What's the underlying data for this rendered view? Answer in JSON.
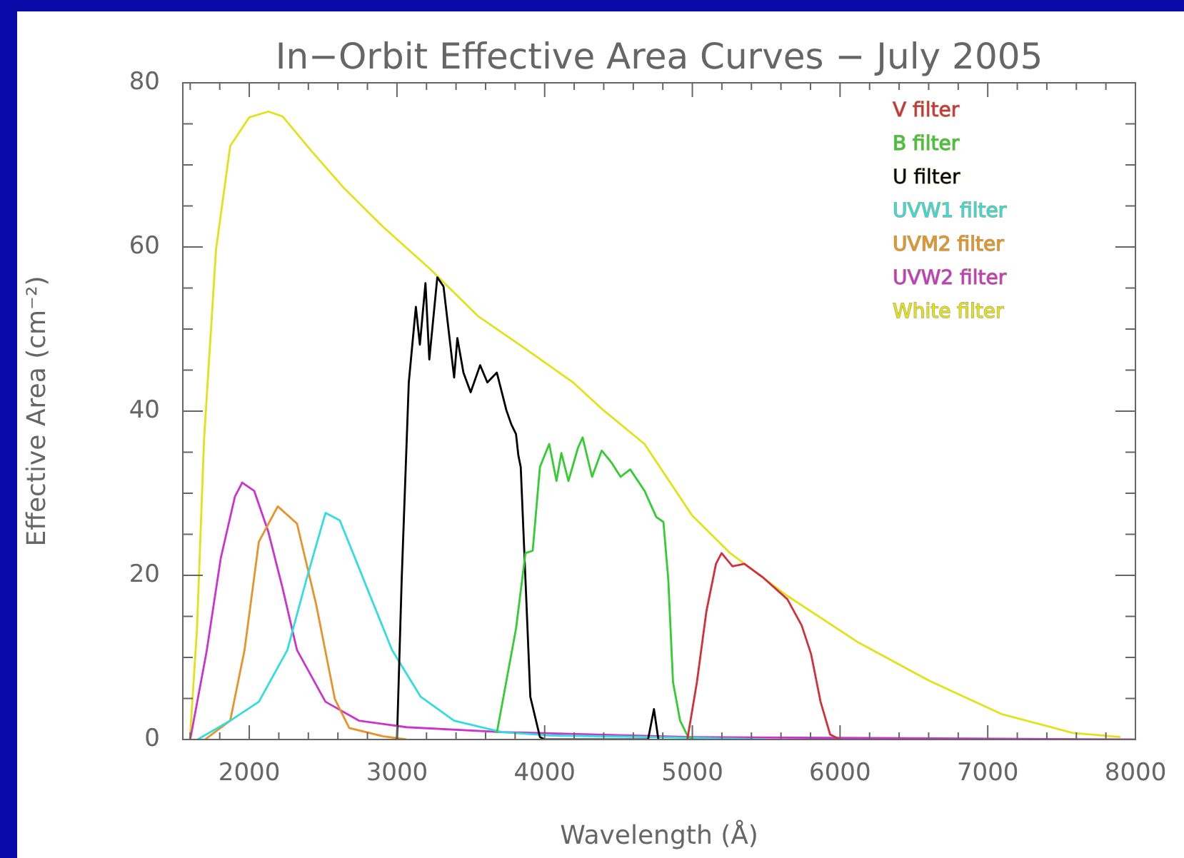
{
  "chart_data": {
    "type": "line",
    "title": "In−Orbit Effective Area Curves − July 2005",
    "xlabel": "Wavelength (Å)",
    "ylabel": "Effective Area (cm⁻²)",
    "xlim": [
      1550,
      8000
    ],
    "ylim": [
      0,
      80
    ],
    "xticks": [
      {
        "value": 1600,
        "label": null
      },
      {
        "value": 1800,
        "label": null
      },
      2000,
      {
        "value": 2200,
        "label": null
      },
      {
        "value": 2400,
        "label": null
      },
      {
        "value": 2600,
        "label": null
      },
      {
        "value": 2800,
        "label": null
      },
      3000,
      {
        "value": 3200,
        "label": null
      },
      {
        "value": 3400,
        "label": null
      },
      {
        "value": 3600,
        "label": null
      },
      {
        "value": 3800,
        "label": null
      },
      4000,
      {
        "value": 4200,
        "label": null
      },
      {
        "value": 4400,
        "label": null
      },
      {
        "value": 4600,
        "label": null
      },
      {
        "value": 4800,
        "label": null
      },
      5000,
      {
        "value": 5200,
        "label": null
      },
      {
        "value": 5400,
        "label": null
      },
      {
        "value": 5600,
        "label": null
      },
      {
        "value": 5800,
        "label": null
      },
      6000,
      {
        "value": 6200,
        "label": null
      },
      {
        "value": 6400,
        "label": null
      },
      {
        "value": 6600,
        "label": null
      },
      {
        "value": 6800,
        "label": null
      },
      7000,
      {
        "value": 7200,
        "label": null
      },
      {
        "value": 7400,
        "label": null
      },
      {
        "value": 7600,
        "label": null
      },
      {
        "value": 7800,
        "label": null
      },
      8000
    ],
    "yticks": [
      0,
      {
        "value": 5,
        "label": null
      },
      {
        "value": 10,
        "label": null
      },
      {
        "value": 15,
        "label": null
      },
      20,
      {
        "value": 25,
        "label": null
      },
      {
        "value": 30,
        "label": null
      },
      {
        "value": 35,
        "label": null
      },
      40,
      {
        "value": 45,
        "label": null
      },
      {
        "value": 50,
        "label": null
      },
      {
        "value": 55,
        "label": null
      },
      60,
      {
        "value": 65,
        "label": null
      },
      {
        "value": 70,
        "label": null
      },
      {
        "value": 75,
        "label": null
      },
      80
    ],
    "grid": false,
    "legend": "top right",
    "marker": "none",
    "line_style": "solid",
    "series": [
      {
        "name": "V filter",
        "color": "#d0303c",
        "x": [
          4966,
          5031,
          5095,
          5160,
          5198,
          5272,
          5352,
          5481,
          5643,
          5740,
          5804,
          5868,
          5933,
          6000
        ],
        "values": [
          0,
          7,
          15.6,
          21.4,
          22.7,
          21.1,
          21.4,
          19.7,
          17.1,
          13.9,
          10.4,
          4.6,
          0.6,
          0
        ]
      },
      {
        "name": "B filter",
        "color": "#33cc33",
        "x": [
          3676,
          3806,
          3870,
          3919,
          3968,
          4031,
          4080,
          4113,
          4161,
          4225,
          4257,
          4321,
          4386,
          4450,
          4514,
          4579,
          4676,
          4756,
          4804,
          4837,
          4869,
          4917,
          4966,
          5000
        ],
        "values": [
          0.8,
          13.5,
          22.7,
          23,
          33.2,
          36,
          31.5,
          34.9,
          31.5,
          35.5,
          36.8,
          32,
          35.2,
          33.8,
          32,
          32.9,
          30.3,
          27.1,
          26.5,
          19.5,
          7,
          2.3,
          0.5,
          0
        ]
      },
      {
        "name": "U filter",
        "color": "#000000",
        "x": [
          3000,
          3032,
          3080,
          3128,
          3155,
          3193,
          3219,
          3273,
          3315,
          3387,
          3409,
          3450,
          3499,
          3563,
          3612,
          3676,
          3741,
          3774,
          3806,
          3822,
          3838,
          3870,
          3903,
          3968,
          4000,
          4700,
          4740,
          4770
        ],
        "values": [
          0,
          19.5,
          43.5,
          52.7,
          48.1,
          55.6,
          46.3,
          56.3,
          55.2,
          44.1,
          48.9,
          44.7,
          42.3,
          45.6,
          43.5,
          44.7,
          40.1,
          38.4,
          37.2,
          34.6,
          33.2,
          19.5,
          5.2,
          0.3,
          0,
          0,
          3.7,
          0
        ]
      },
      {
        "name": "UVW1 filter",
        "color": "#33dddd",
        "x": [
          1650,
          1871,
          2065,
          2258,
          2387,
          2516,
          2613,
          2774,
          2967,
          3161,
          3387,
          3709,
          4031,
          5000,
          5500
        ],
        "values": [
          0,
          2.3,
          4.6,
          10.9,
          19.5,
          27.6,
          26.7,
          19.5,
          10.9,
          5.2,
          2.3,
          0.9,
          0.5,
          0.2,
          0
        ]
      },
      {
        "name": "UVM2 filter",
        "color": "#e8922a",
        "x": [
          1700,
          1871,
          1968,
          2065,
          2193,
          2323,
          2451,
          2580,
          2677,
          2903,
          3064
        ],
        "values": [
          0,
          2.3,
          10.9,
          24.1,
          28.4,
          26.3,
          16.6,
          4.9,
          1.4,
          0.4,
          0
        ]
      },
      {
        "name": "UVW2 filter",
        "color": "#cc33cc",
        "x": [
          1600,
          1710,
          1807,
          1903,
          1952,
          2033,
          2129,
          2226,
          2323,
          2516,
          2742,
          3064,
          3709,
          5000,
          8000
        ],
        "values": [
          0,
          10.6,
          22.1,
          29.6,
          31.3,
          30.3,
          25.3,
          18.4,
          10.9,
          4.6,
          2.3,
          1.5,
          0.9,
          0.3,
          0
        ]
      },
      {
        "name": "White filter",
        "color": "#e2e21a",
        "x": [
          1598,
          1646,
          1694,
          1775,
          1871,
          2000,
          2129,
          2226,
          2420,
          2645,
          2903,
          3225,
          3547,
          3870,
          4192,
          4386,
          4676,
          4998,
          5256,
          5643,
          6126,
          6610,
          7093,
          7577,
          7899
        ],
        "values": [
          0,
          13.5,
          36.6,
          59.7,
          72.3,
          75.8,
          76.5,
          75.9,
          71.7,
          67.1,
          62.5,
          57.3,
          51.6,
          47.6,
          43.5,
          40.3,
          36,
          27.3,
          22.7,
          17.5,
          11.8,
          7.1,
          3.1,
          0.8,
          0.3
        ]
      }
    ]
  }
}
